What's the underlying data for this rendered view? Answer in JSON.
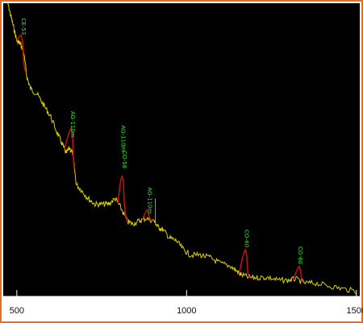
{
  "chart_data": {
    "type": "line",
    "title": "",
    "xlabel": "",
    "ylabel": "",
    "xlim": [
      460,
      1510
    ],
    "ylim": [
      0,
      1
    ],
    "grid": false,
    "xticks": [
      500,
      1000,
      1500
    ],
    "xtick_labels": [
      "500",
      "1000",
      "1500"
    ],
    "colors": {
      "background": "#000000",
      "spectrum": "#d8d000",
      "peak": "#cc1010",
      "annotation": "#33ee22",
      "frame": "#e0702a",
      "axis": "#ffffff"
    },
    "series": [
      {
        "values": [
          [
            470,
            1.02
          ],
          [
            480,
            0.97
          ],
          [
            490,
            0.92
          ],
          [
            500,
            0.87
          ],
          [
            510,
            0.86
          ],
          [
            520,
            0.83
          ],
          [
            530,
            0.74
          ],
          [
            540,
            0.7
          ],
          [
            560,
            0.68
          ],
          [
            580,
            0.64
          ],
          [
            600,
            0.6
          ],
          [
            620,
            0.54
          ],
          [
            635,
            0.5
          ],
          [
            645,
            0.47
          ],
          [
            655,
            0.49
          ],
          [
            665,
            0.47
          ],
          [
            675,
            0.36
          ],
          [
            690,
            0.34
          ],
          [
            710,
            0.31
          ],
          [
            730,
            0.29
          ],
          [
            750,
            0.29
          ],
          [
            770,
            0.29
          ],
          [
            790,
            0.31
          ],
          [
            805,
            0.28
          ],
          [
            825,
            0.23
          ],
          [
            840,
            0.22
          ],
          [
            860,
            0.23
          ],
          [
            880,
            0.24
          ],
          [
            905,
            0.23
          ],
          [
            915,
            0.21
          ],
          [
            930,
            0.2
          ],
          [
            950,
            0.17
          ],
          [
            970,
            0.16
          ],
          [
            990,
            0.13
          ],
          [
            1010,
            0.11
          ],
          [
            1040,
            0.11
          ],
          [
            1070,
            0.1
          ],
          [
            1100,
            0.08
          ],
          [
            1130,
            0.07
          ],
          [
            1150,
            0.05
          ],
          [
            1160,
            0.04
          ],
          [
            1185,
            0.03
          ],
          [
            1210,
            0.03
          ],
          [
            1240,
            0.03
          ],
          [
            1270,
            0.02
          ],
          [
            1300,
            0.02
          ],
          [
            1320,
            0.025
          ],
          [
            1350,
            0.01
          ],
          [
            1380,
            0.01
          ],
          [
            1420,
            0.0
          ],
          [
            1460,
            -0.01
          ],
          [
            1505,
            -0.02
          ]
        ]
      }
    ],
    "peaks": [
      {
        "label": "CE-53",
        "energy": 513,
        "base_left": 500,
        "base_right": 528,
        "height": 0.89
      },
      {
        "label": "AG-110m",
        "energy": 660,
        "base_left": 640,
        "base_right": 670,
        "height": 0.56
      },
      {
        "label": "CO-58",
        "energy": 810,
        "base_left": 798,
        "base_right": 828,
        "height": 0.39
      },
      {
        "label": "AG-110m",
        "energy": 885,
        "base_left": 870,
        "base_right": 900,
        "height": 0.27
      },
      {
        "label": "CO-60",
        "energy": 1173,
        "base_left": 1155,
        "base_right": 1185,
        "height": 0.13
      },
      {
        "label": "CO-60",
        "energy": 1332,
        "base_left": 1315,
        "base_right": 1345,
        "height": 0.07
      }
    ],
    "annotations": [
      {
        "text": "CE-53",
        "x": 515,
        "y": 0.95
      },
      {
        "text": "AG-110m",
        "x": 660,
        "y": 0.62
      },
      {
        "text": "AG-110m",
        "x": 808,
        "y": 0.57
      },
      {
        "text": "CO-58",
        "x": 812,
        "y": 0.48
      },
      {
        "text": "AG-110m",
        "x": 886,
        "y": 0.35
      },
      {
        "text": "CO-60",
        "x": 1172,
        "y": 0.2
      },
      {
        "text": "CO-60",
        "x": 1330,
        "y": 0.14
      }
    ]
  }
}
